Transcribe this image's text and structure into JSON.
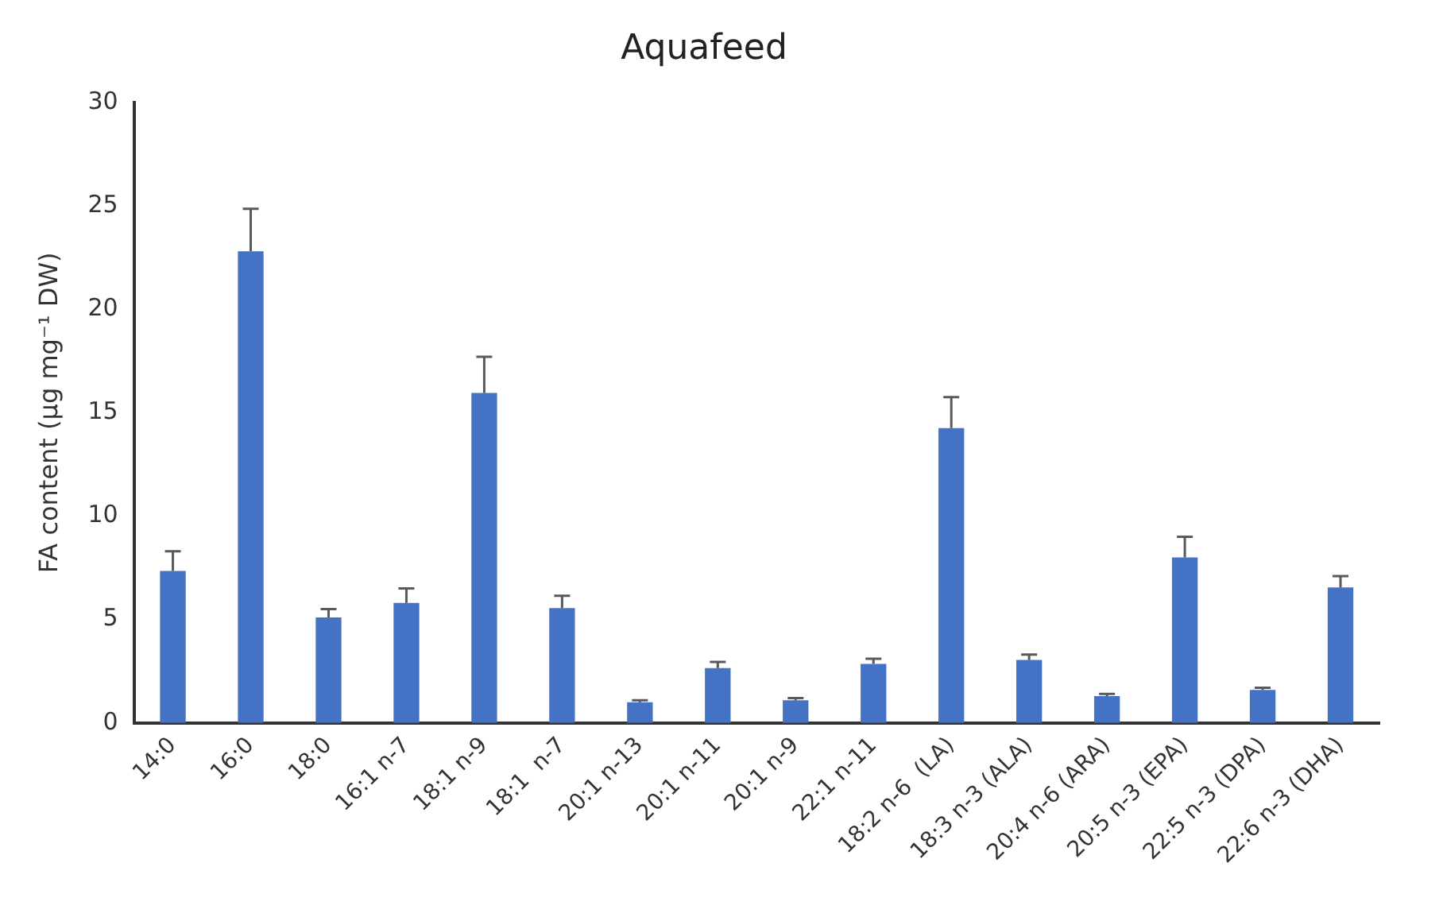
{
  "chart_data": {
    "type": "bar",
    "title": "Aquafeed",
    "ylabel": "FA content (μg mg⁻¹ DW)",
    "categories": [
      "14:0",
      "16:0",
      "18:0",
      "16:1 n-7",
      "18:1 n-9",
      "18:1  n-7",
      "20:1 n-13",
      "20:1 n-11",
      "20:1 n-9",
      "22:1 n-11",
      "18:2 n-6  (LA)",
      "18:3 n-3 (ALA)",
      "20:4 n-6 (ARA)",
      "20:5 n-3 (EPA)",
      "22:5 n-3 (DPA)",
      "22:6 n-3 (DHA)"
    ],
    "values": [
      7.35,
      22.8,
      5.1,
      5.8,
      15.95,
      5.55,
      1.0,
      2.65,
      1.1,
      2.85,
      14.25,
      3.05,
      1.3,
      8.0,
      1.6,
      6.55
    ],
    "errors": [
      0.95,
      2.05,
      0.4,
      0.7,
      1.75,
      0.6,
      0.1,
      0.3,
      0.1,
      0.25,
      1.5,
      0.25,
      0.1,
      1.0,
      0.1,
      0.55
    ],
    "color": "#4472c4",
    "ylim": [
      0,
      30
    ],
    "yticks": [
      0,
      5,
      10,
      15,
      20,
      25,
      30
    ],
    "grid": false,
    "legend": false
  }
}
